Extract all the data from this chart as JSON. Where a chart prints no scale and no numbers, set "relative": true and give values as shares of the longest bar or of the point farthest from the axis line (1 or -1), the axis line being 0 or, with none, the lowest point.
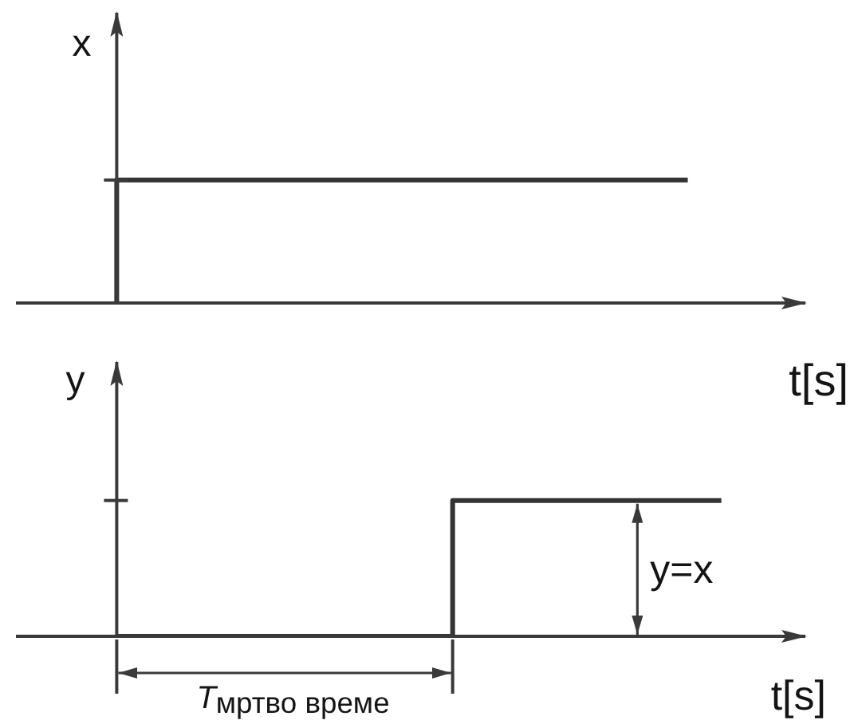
{
  "chart_data": [
    {
      "type": "step",
      "relative": true,
      "ylabel": "x",
      "xlabel": "t[s]",
      "color": "#333333",
      "categories": [
        null,
        null,
        null,
        null,
        null,
        null,
        null,
        null,
        null,
        null,
        null,
        null,
        null,
        null,
        null,
        null,
        null,
        null,
        null,
        null,
        null,
        null,
        null,
        null,
        null,
        null,
        null,
        null,
        null,
        null,
        null,
        null,
        null,
        null,
        null,
        null,
        null,
        null,
        null,
        null,
        null,
        null,
        null,
        null,
        null,
        null,
        null,
        null
      ],
      "values": [
        null,
        null,
        null,
        null,
        null,
        null,
        0,
        1,
        1,
        1,
        1,
        1,
        1,
        1,
        1,
        1,
        1,
        1,
        1,
        1,
        1,
        1,
        1,
        1,
        1,
        1,
        1,
        1,
        1,
        1,
        1,
        1,
        1,
        1,
        1,
        1,
        1,
        1,
        1,
        1,
        1,
        null,
        null,
        null,
        null,
        null,
        null,
        null
      ]
    },
    {
      "type": "step",
      "relative": true,
      "ylabel": "y",
      "xlabel": "t[s]",
      "color": "#333333",
      "categories": [
        null,
        null,
        null,
        null,
        null,
        null,
        null,
        null,
        null,
        null,
        null,
        null,
        null,
        null,
        null,
        null,
        null,
        null,
        null,
        null,
        null,
        null,
        null,
        null,
        null,
        null,
        null,
        null,
        null,
        null,
        null,
        null,
        null,
        null,
        null,
        null,
        null,
        null,
        null,
        null,
        null,
        null,
        null,
        null,
        null,
        null,
        null,
        null
      ],
      "values": [
        null,
        null,
        null,
        null,
        null,
        null,
        0,
        0,
        0,
        0,
        0,
        0,
        0,
        0,
        0,
        0,
        0,
        0,
        0,
        0,
        0,
        0,
        0,
        0,
        0,
        0,
        0,
        1,
        1,
        1,
        1,
        1,
        1,
        1,
        1,
        1,
        1,
        1,
        1,
        1,
        1,
        1,
        1,
        null,
        null,
        null,
        null,
        null
      ],
      "annotations": [
        "y=x",
        "T$_{мртво време}$"
      ]
    }
  ]
}
